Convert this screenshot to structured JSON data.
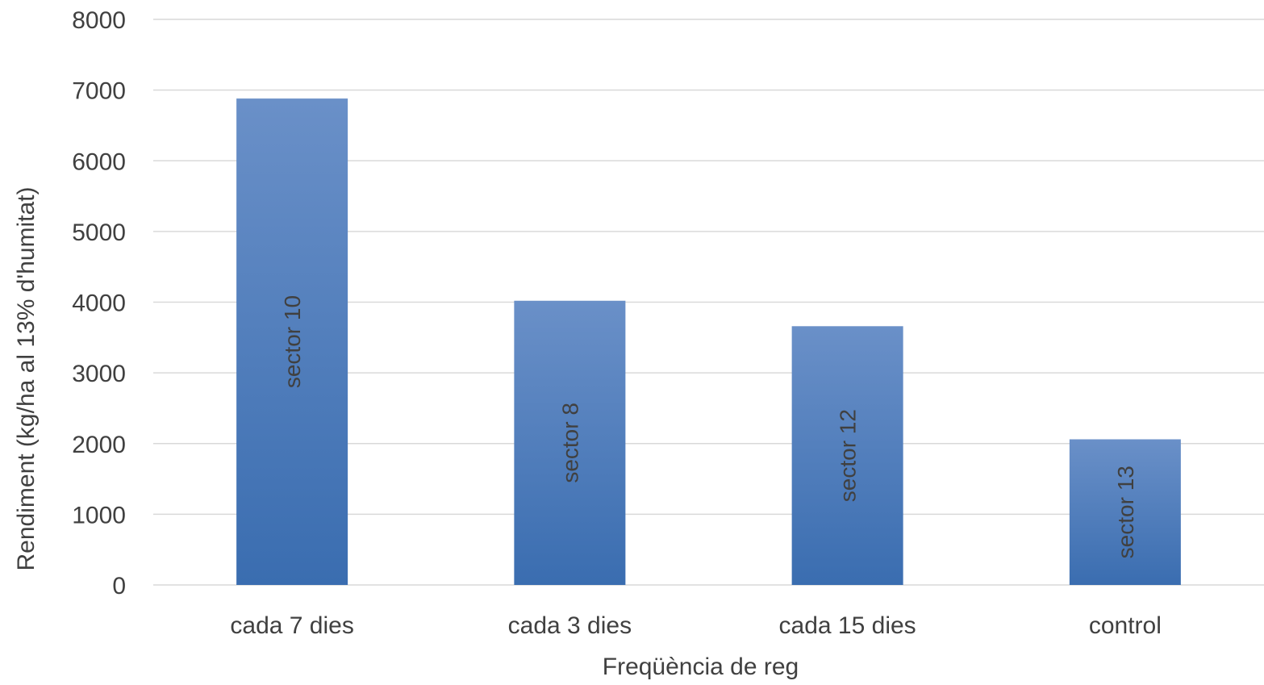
{
  "chart_data": {
    "type": "bar",
    "title": "",
    "xlabel": "Freqüència de reg",
    "ylabel": "Rendiment (kg/ha al 13% d'humitat)",
    "ylim": [
      0,
      8000
    ],
    "yticks": [
      0,
      1000,
      2000,
      3000,
      4000,
      5000,
      6000,
      7000,
      8000
    ],
    "grid": true,
    "legend": "none",
    "categories": [
      "cada 7 dies",
      "cada 3 dies",
      "cada 15 dies",
      "control"
    ],
    "values": [
      6880,
      4020,
      3660,
      2060
    ],
    "data_labels": [
      "sector 10",
      "sector 8",
      "sector 12",
      "sector 13"
    ],
    "colors": {
      "bar_top": "#6a90c8",
      "bar_bottom": "#3a6db0",
      "grid": "#d9d9d9",
      "text": "#404040"
    }
  }
}
